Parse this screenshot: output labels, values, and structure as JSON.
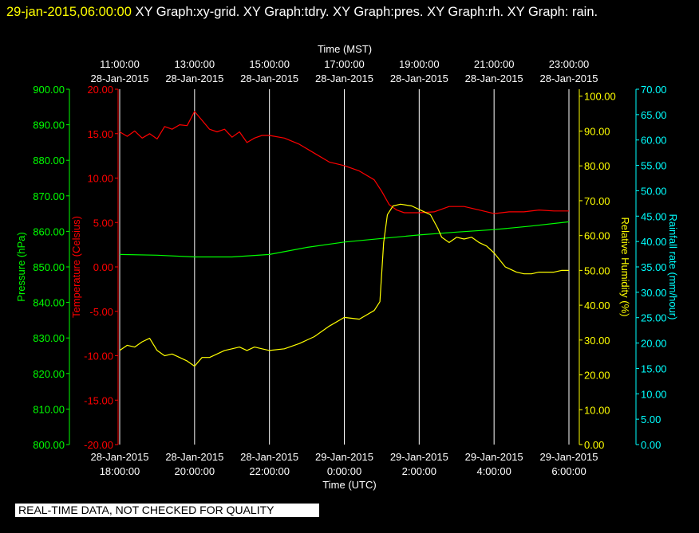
{
  "header": {
    "timestamp": "29-jan-2015,06:00:00",
    "graphs": "XY Graph:xy-grid.  XY Graph:tdry.  XY Graph:pres.  XY Graph:rh.  XY Graph: rain."
  },
  "notice": "REAL-TIME DATA, NOT CHECKED FOR QUALITY",
  "colors": {
    "background": "#000000",
    "grid": "#ffffff",
    "temperature": "#ff0000",
    "pressure": "#00ff00",
    "humidity": "#ffff00",
    "rain": "#00ffff"
  },
  "chart_data": {
    "type": "line",
    "grid": true,
    "x_top": {
      "title": "Time (MST)",
      "ticks": [
        {
          "time": "11:00:00",
          "date": "28-Jan-2015"
        },
        {
          "time": "13:00:00",
          "date": "28-Jan-2015"
        },
        {
          "time": "15:00:00",
          "date": "28-Jan-2015"
        },
        {
          "time": "17:00:00",
          "date": "28-Jan-2015"
        },
        {
          "time": "19:00:00",
          "date": "28-Jan-2015"
        },
        {
          "time": "21:00:00",
          "date": "28-Jan-2015"
        },
        {
          "time": "23:00:00",
          "date": "28-Jan-2015"
        }
      ]
    },
    "x_bottom": {
      "title": "Time (UTC)",
      "range": [
        "2015-01-28 18:00",
        "2015-01-29 06:00"
      ],
      "ticks": [
        {
          "date": "28-Jan-2015",
          "time": "18:00:00"
        },
        {
          "date": "28-Jan-2015",
          "time": "20:00:00"
        },
        {
          "date": "28-Jan-2015",
          "time": "22:00:00"
        },
        {
          "date": "29-Jan-2015",
          "time": "0:00:00"
        },
        {
          "date": "29-Jan-2015",
          "time": "2:00:00"
        },
        {
          "date": "29-Jan-2015",
          "time": "4:00:00"
        },
        {
          "date": "29-Jan-2015",
          "time": "6:00:00"
        }
      ]
    },
    "axes": {
      "pressure": {
        "label": "Pressure (hPa)",
        "ylim": [
          800,
          900
        ],
        "ticks": [
          "800.00",
          "810.00",
          "820.00",
          "830.00",
          "840.00",
          "850.00",
          "860.00",
          "870.00",
          "880.00",
          "890.00",
          "900.00"
        ]
      },
      "temperature": {
        "label": "Temperature (Celsius)",
        "ylim": [
          -20,
          20
        ],
        "ticks": [
          "-20.00",
          "-15.00",
          "-10.00",
          "-5.00",
          "0.00",
          "5.00",
          "10.00",
          "15.00",
          "20.00"
        ]
      },
      "humidity": {
        "label": "Relative Humidity (%)",
        "ylim": [
          0,
          102
        ],
        "ticks": [
          "0.00",
          "10.00",
          "20.00",
          "30.00",
          "40.00",
          "50.00",
          "60.00",
          "70.00",
          "80.00",
          "90.00",
          "100.00"
        ]
      },
      "rain": {
        "label": "Rainfall rate (mm/hour)",
        "ylim": [
          0,
          70
        ],
        "ticks": [
          "0.00",
          "5.00",
          "10.00",
          "15.00",
          "20.00",
          "25.00",
          "30.00",
          "35.00",
          "40.00",
          "45.00",
          "50.00",
          "55.00",
          "60.00",
          "65.00",
          "70.00"
        ]
      }
    },
    "series": [
      {
        "key": "temperature",
        "axis": "temperature",
        "x_hours_utc": [
          18.0,
          18.2,
          18.4,
          18.6,
          18.8,
          19.0,
          19.2,
          19.4,
          19.6,
          19.8,
          20.0,
          20.2,
          20.4,
          20.6,
          20.8,
          21.0,
          21.2,
          21.4,
          21.6,
          21.8,
          22.0,
          22.4,
          22.8,
          23.2,
          23.6,
          24.0,
          24.4,
          24.8,
          25.0,
          25.2,
          25.4,
          25.6,
          25.8,
          26.0,
          26.4,
          26.8,
          27.0,
          27.2,
          27.6,
          28.0,
          28.4,
          28.8,
          29.2,
          29.6,
          30.0
        ],
        "values": [
          15.2,
          14.7,
          15.3,
          14.5,
          15.0,
          14.4,
          15.8,
          15.5,
          16.0,
          15.9,
          17.5,
          16.5,
          15.5,
          15.2,
          15.5,
          14.6,
          15.2,
          14.0,
          14.5,
          14.8,
          14.8,
          14.5,
          13.8,
          12.8,
          11.8,
          11.4,
          10.8,
          9.8,
          8.5,
          7.0,
          6.4,
          6.1,
          6.1,
          6.1,
          6.2,
          6.8,
          6.8,
          6.8,
          6.4,
          6.0,
          6.2,
          6.2,
          6.4,
          6.3,
          6.3
        ]
      },
      {
        "key": "pressure",
        "axis": "pressure",
        "x_hours_utc": [
          18.0,
          19.0,
          20.0,
          21.0,
          22.0,
          23.0,
          24.0,
          25.0,
          26.0,
          27.0,
          28.0,
          29.0,
          30.0
        ],
        "values": [
          853.5,
          853.3,
          852.8,
          852.8,
          853.5,
          855.5,
          857.0,
          858.0,
          859.0,
          859.8,
          860.5,
          861.5,
          862.7
        ]
      },
      {
        "key": "humidity",
        "axis": "humidity",
        "x_hours_utc": [
          18.0,
          18.2,
          18.4,
          18.6,
          18.8,
          19.0,
          19.2,
          19.4,
          19.6,
          19.8,
          20.0,
          20.2,
          20.4,
          20.6,
          20.8,
          21.0,
          21.2,
          21.4,
          21.6,
          21.8,
          22.0,
          22.4,
          22.8,
          23.2,
          23.6,
          24.0,
          24.4,
          24.8,
          24.95,
          25.05,
          25.15,
          25.3,
          25.5,
          25.8,
          26.0,
          26.3,
          26.5,
          26.6,
          26.8,
          27.0,
          27.2,
          27.4,
          27.6,
          27.8,
          28.0,
          28.3,
          28.6,
          28.8,
          29.0,
          29.2,
          29.4,
          29.6,
          29.8,
          30.0
        ],
        "values": [
          27.0,
          28.5,
          28.0,
          29.5,
          30.5,
          27.0,
          25.5,
          26.0,
          25.0,
          24.0,
          22.5,
          25.0,
          25.0,
          26.0,
          27.0,
          27.5,
          28.0,
          27.0,
          28.0,
          27.5,
          27.0,
          27.5,
          29.0,
          31.0,
          34.0,
          36.5,
          36.0,
          38.5,
          41.0,
          58.0,
          66.0,
          68.5,
          69.0,
          68.5,
          67.5,
          66.0,
          62.0,
          59.5,
          58.0,
          59.5,
          59.0,
          59.5,
          58.0,
          57.0,
          55.0,
          51.0,
          49.5,
          49.0,
          49.0,
          49.5,
          49.5,
          49.5,
          50.0,
          50.0
        ]
      },
      {
        "key": "rain",
        "axis": "rain",
        "x_hours_utc": [],
        "values": []
      }
    ]
  }
}
